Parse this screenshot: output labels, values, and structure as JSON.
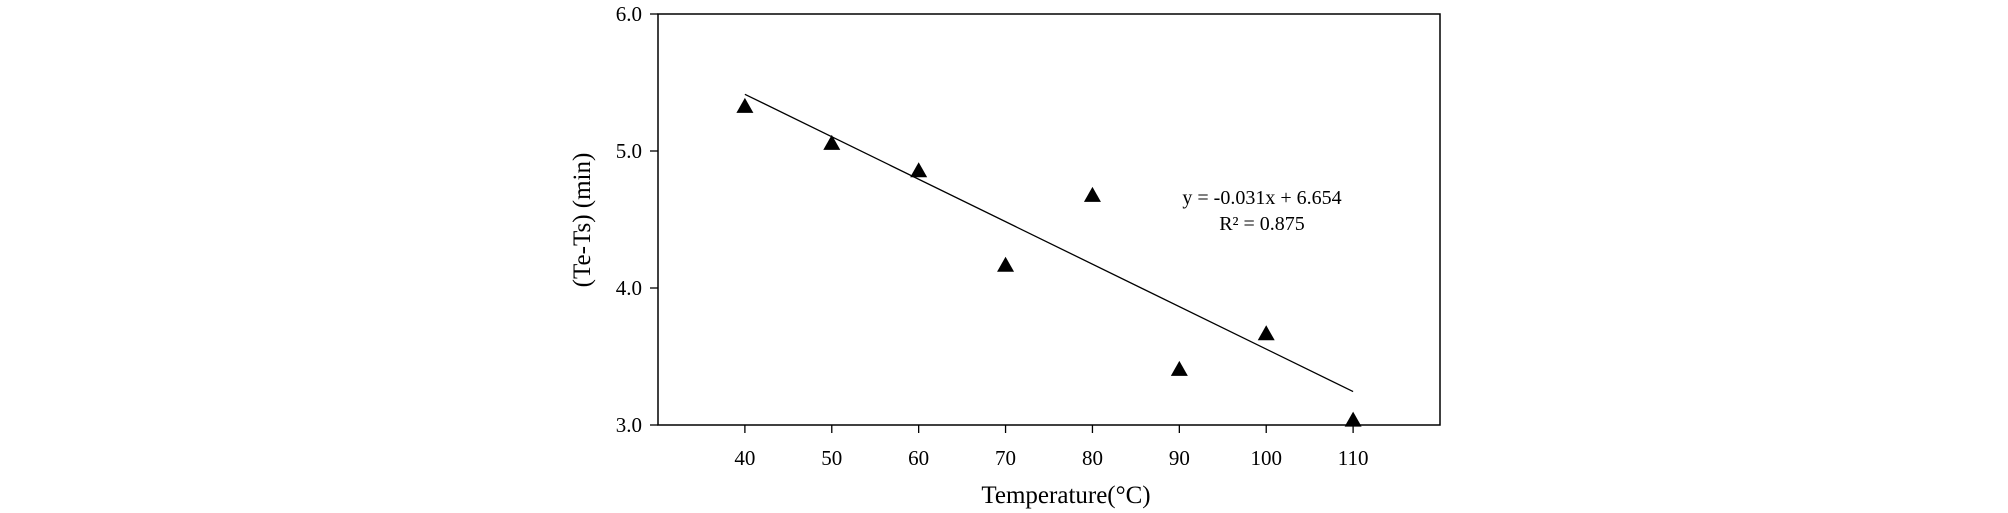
{
  "chart_data": {
    "type": "scatter",
    "xlabel": "Temperature(°C)",
    "ylabel": "(Te-Ts) (min)",
    "xlim": [
      30,
      120
    ],
    "ylim": [
      3.0,
      6.0
    ],
    "x_ticks": [
      "40",
      "50",
      "60",
      "70",
      "80",
      "90",
      "100",
      "110"
    ],
    "y_ticks": [
      "3.0",
      "4.0",
      "5.0",
      "6.0"
    ],
    "marker": "triangle",
    "marker_color": "#000000",
    "grid": false,
    "series": [
      {
        "points": [
          {
            "x": 40,
            "y": 5.32
          },
          {
            "x": 50,
            "y": 5.05
          },
          {
            "x": 60,
            "y": 4.85
          },
          {
            "x": 70,
            "y": 4.16
          },
          {
            "x": 80,
            "y": 4.67
          },
          {
            "x": 90,
            "y": 3.4
          },
          {
            "x": 100,
            "y": 3.66
          },
          {
            "x": 110,
            "y": 3.03
          }
        ]
      }
    ],
    "trendline": {
      "slope": -0.031,
      "intercept": 6.654,
      "x_range": [
        40,
        110
      ],
      "equation_label": "y = -0.031x + 6.654",
      "r2_label": "R² = 0.875"
    }
  }
}
